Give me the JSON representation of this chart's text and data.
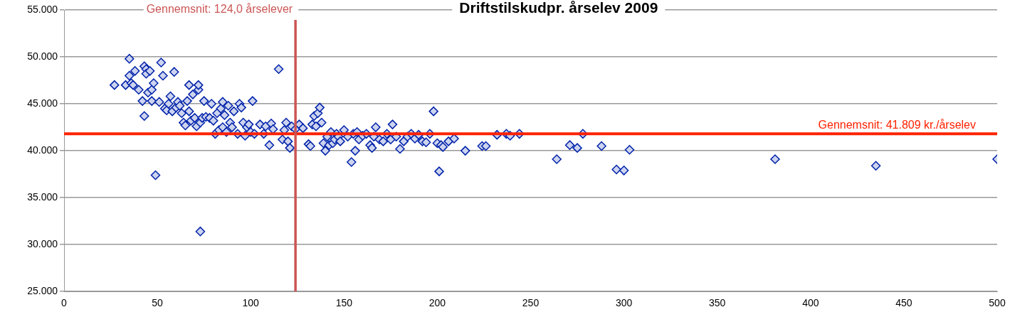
{
  "chart_data": {
    "type": "scatter",
    "title": "Driftstilskudpr. årselev 2009",
    "marker": "diamond",
    "grid": "y",
    "legend": false,
    "xlim": [
      0,
      500
    ],
    "xticks": [
      0,
      50,
      100,
      150,
      200,
      250,
      300,
      350,
      400,
      450,
      500
    ],
    "ylim": [
      25000,
      55000
    ],
    "yticks": [
      {
        "value": 25000,
        "label": "25.000"
      },
      {
        "value": 30000,
        "label": "30.000"
      },
      {
        "value": 35000,
        "label": "35.000"
      },
      {
        "value": 40000,
        "label": "40.000"
      },
      {
        "value": 45000,
        "label": "45.000"
      },
      {
        "value": 50000,
        "label": "50.000"
      },
      {
        "value": 55000,
        "label": "55.000"
      }
    ],
    "ref_lines": [
      {
        "axis": "y",
        "value": 41809,
        "label": "Gennemsnit: 41.809 kr./årselev",
        "color": "#ff2200"
      },
      {
        "axis": "x",
        "value": 124,
        "label": "Gennemsnit: 124,0 årselever",
        "color": "#cc5555"
      }
    ],
    "series": [
      {
        "color": "#0022aa",
        "x": [
          27,
          33,
          35,
          35,
          36,
          37,
          38,
          40,
          42,
          43,
          43,
          44,
          44,
          45,
          46,
          47,
          47,
          48,
          49,
          51,
          52,
          53,
          54,
          55,
          56,
          57,
          58,
          59,
          60,
          61,
          62,
          63,
          64,
          65,
          66,
          67,
          67,
          68,
          69,
          70,
          71,
          72,
          72,
          73,
          73,
          74,
          75,
          76,
          78,
          79,
          80,
          81,
          82,
          83,
          84,
          85,
          85,
          86,
          87,
          88,
          89,
          90,
          91,
          93,
          94,
          95,
          96,
          97,
          98,
          99,
          100,
          101,
          102,
          105,
          107,
          108,
          110,
          111,
          112,
          115,
          117,
          118,
          119,
          120,
          121,
          122,
          124,
          126,
          128,
          131,
          132,
          133,
          134,
          135,
          136,
          137,
          138,
          139,
          140,
          141,
          142,
          143,
          144,
          145,
          146,
          147,
          148,
          150,
          152,
          154,
          155,
          156,
          157,
          158,
          160,
          162,
          164,
          165,
          166,
          167,
          169,
          171,
          173,
          175,
          176,
          178,
          180,
          182,
          184,
          186,
          188,
          190,
          192,
          194,
          196,
          198,
          200,
          201,
          202,
          203,
          206,
          209,
          215,
          224,
          226,
          232,
          237,
          239,
          244,
          264,
          271,
          275,
          278,
          288,
          296,
          300,
          303,
          381,
          435,
          500
        ],
        "values": [
          47000,
          47000,
          49800,
          48000,
          47200,
          47000,
          48500,
          46500,
          45300,
          43700,
          49000,
          48700,
          48200,
          46200,
          48500,
          46500,
          45300,
          47200,
          37400,
          45200,
          49400,
          48000,
          44500,
          44300,
          45000,
          45800,
          44200,
          48400,
          44600,
          45200,
          44800,
          44000,
          43000,
          42700,
          45300,
          47000,
          44200,
          43200,
          46000,
          43500,
          42600,
          46500,
          47000,
          43000,
          31400,
          43500,
          45300,
          43600,
          43500,
          45000,
          43200,
          41800,
          44000,
          42200,
          44500,
          45200,
          42500,
          43800,
          42000,
          44800,
          43000,
          42500,
          44200,
          41800,
          45000,
          44600,
          43000,
          41600,
          42500,
          42800,
          42000,
          45300,
          41800,
          42800,
          41800,
          42600,
          40600,
          42900,
          42300,
          48700,
          41200,
          42200,
          43000,
          41000,
          40300,
          42600,
          42300,
          42800,
          42400,
          40700,
          40500,
          42800,
          43700,
          42600,
          44000,
          44600,
          43000,
          40800,
          40000,
          41500,
          40600,
          42000,
          40800,
          41200,
          41800,
          41500,
          41000,
          42200,
          41500,
          38800,
          41800,
          40000,
          42000,
          41200,
          41600,
          41800,
          40600,
          40300,
          41500,
          42500,
          41200,
          41000,
          41800,
          41200,
          42800,
          41500,
          40200,
          41000,
          41500,
          41800,
          41300,
          41700,
          41000,
          40900,
          41800,
          44200,
          40800,
          37800,
          40600,
          40400,
          41000,
          41300,
          40000,
          40500,
          40500,
          41700,
          41800,
          41600,
          41800,
          39100,
          40600,
          40300,
          41800,
          40500,
          38000,
          37900,
          40100,
          39100,
          38400,
          39100
        ]
      }
    ]
  }
}
